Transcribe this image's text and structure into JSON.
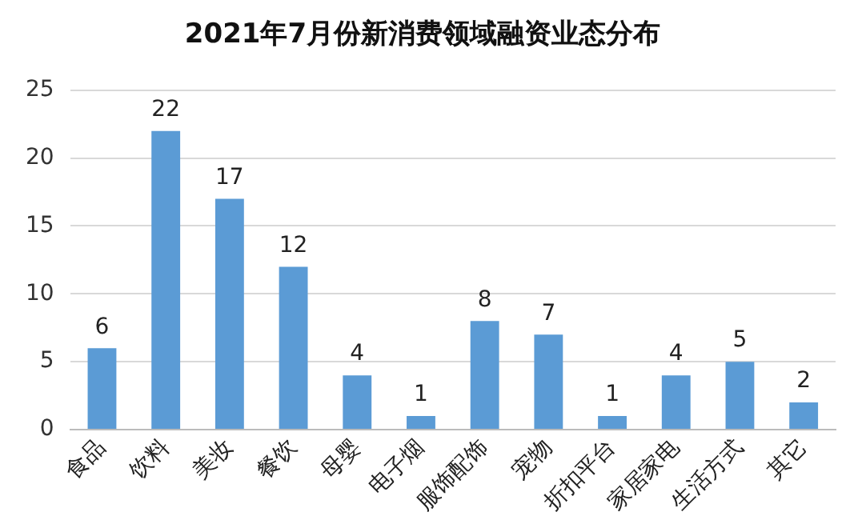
{
  "chart_data": {
    "type": "bar",
    "title": "2021年7月份新消费领域融资业态分布",
    "categories": [
      "食品",
      "饮料",
      "美妆",
      "餐饮",
      "母婴",
      "电子烟",
      "服饰配饰",
      "宠物",
      "折扣平台",
      "家居家电",
      "生活方式",
      "其它"
    ],
    "values": [
      6,
      22,
      17,
      12,
      4,
      1,
      8,
      7,
      1,
      4,
      5,
      2
    ],
    "color": "#5b9bd5",
    "ylim": [
      0,
      25
    ],
    "yticks": [
      0,
      5,
      10,
      15,
      20,
      25
    ],
    "grid": "y",
    "data_labels": true
  }
}
